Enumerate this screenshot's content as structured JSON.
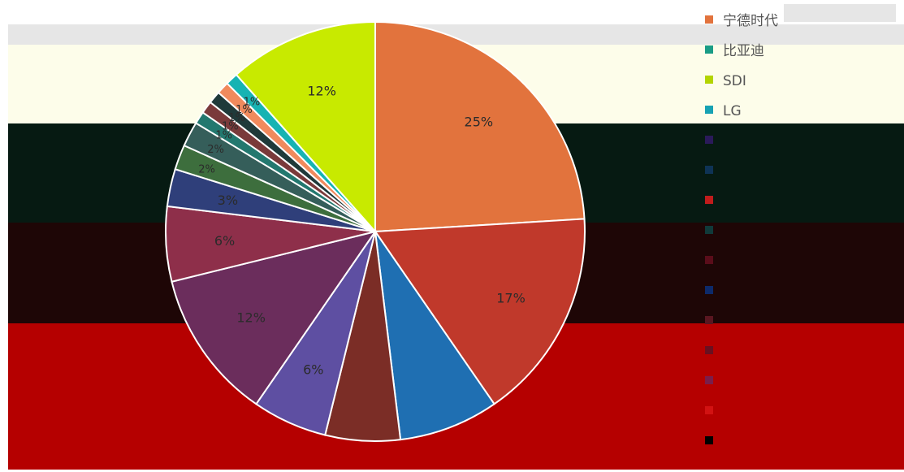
{
  "chart_data": {
    "type": "pie",
    "start_angle_deg": -90,
    "slices": [
      {
        "name": "宁德时代",
        "value": 25,
        "label": "25%",
        "color": "#e2733d"
      },
      {
        "name": "",
        "value": 17,
        "label": "17%",
        "color": "#c0392b"
      },
      {
        "name": "",
        "value": 8,
        "label": "",
        "color": "#1f6fb2"
      },
      {
        "name": "",
        "value": 6,
        "label": "",
        "color": "#7b2d26"
      },
      {
        "name": "",
        "value": 6,
        "label": "6%",
        "color": "#5e4fa2"
      },
      {
        "name": "",
        "value": 12,
        "label": "12%",
        "color": "#6b2d5c"
      },
      {
        "name": "",
        "value": 6,
        "label": "6%",
        "color": "#8e2f4a"
      },
      {
        "name": "",
        "value": 3,
        "label": "3%",
        "color": "#2f3f7a"
      },
      {
        "name": "",
        "value": 2,
        "label": "2%",
        "color": "#3d6e3d"
      },
      {
        "name": "",
        "value": 2,
        "label": "2%",
        "color": "#355e5a"
      },
      {
        "name": "",
        "value": 1,
        "label": "1%",
        "color": "#23786f"
      },
      {
        "name": "",
        "value": 1,
        "label": "1%",
        "color": "#7a3a3a"
      },
      {
        "name": "",
        "value": 1,
        "label": "1%",
        "color": "#1f3a3a"
      },
      {
        "name": "",
        "value": 1,
        "label": "1%",
        "color": "#f08a5d"
      },
      {
        "name": "LG",
        "value": 1,
        "label": "1%",
        "color": "#17b3b3"
      },
      {
        "name": "SDI",
        "value": 12,
        "label": "12%",
        "color": "#c8ea00"
      }
    ],
    "legend": {
      "position": "right",
      "entries": [
        {
          "label": "宁德时代",
          "color": "#e2733d"
        },
        {
          "label": "比亚迪",
          "color": "#1a9c86"
        },
        {
          "label": "SDI",
          "color": "#b3d400"
        },
        {
          "label": "LG",
          "color": "#17a2b3"
        },
        {
          "label": "",
          "color": "#2a1a5a"
        },
        {
          "label": "",
          "color": "#0e3355"
        },
        {
          "label": "",
          "color": "#c01c1c"
        },
        {
          "label": "",
          "color": "#103a3a"
        },
        {
          "label": "",
          "color": "#5a0d1a"
        },
        {
          "label": "",
          "color": "#0d2a6a"
        },
        {
          "label": "",
          "color": "#5a1620"
        },
        {
          "label": "",
          "color": "#6a1020"
        },
        {
          "label": "",
          "color": "#7a1e4a"
        },
        {
          "label": "",
          "color": "#d21212"
        },
        {
          "label": "",
          "color": "#000000"
        }
      ]
    }
  }
}
